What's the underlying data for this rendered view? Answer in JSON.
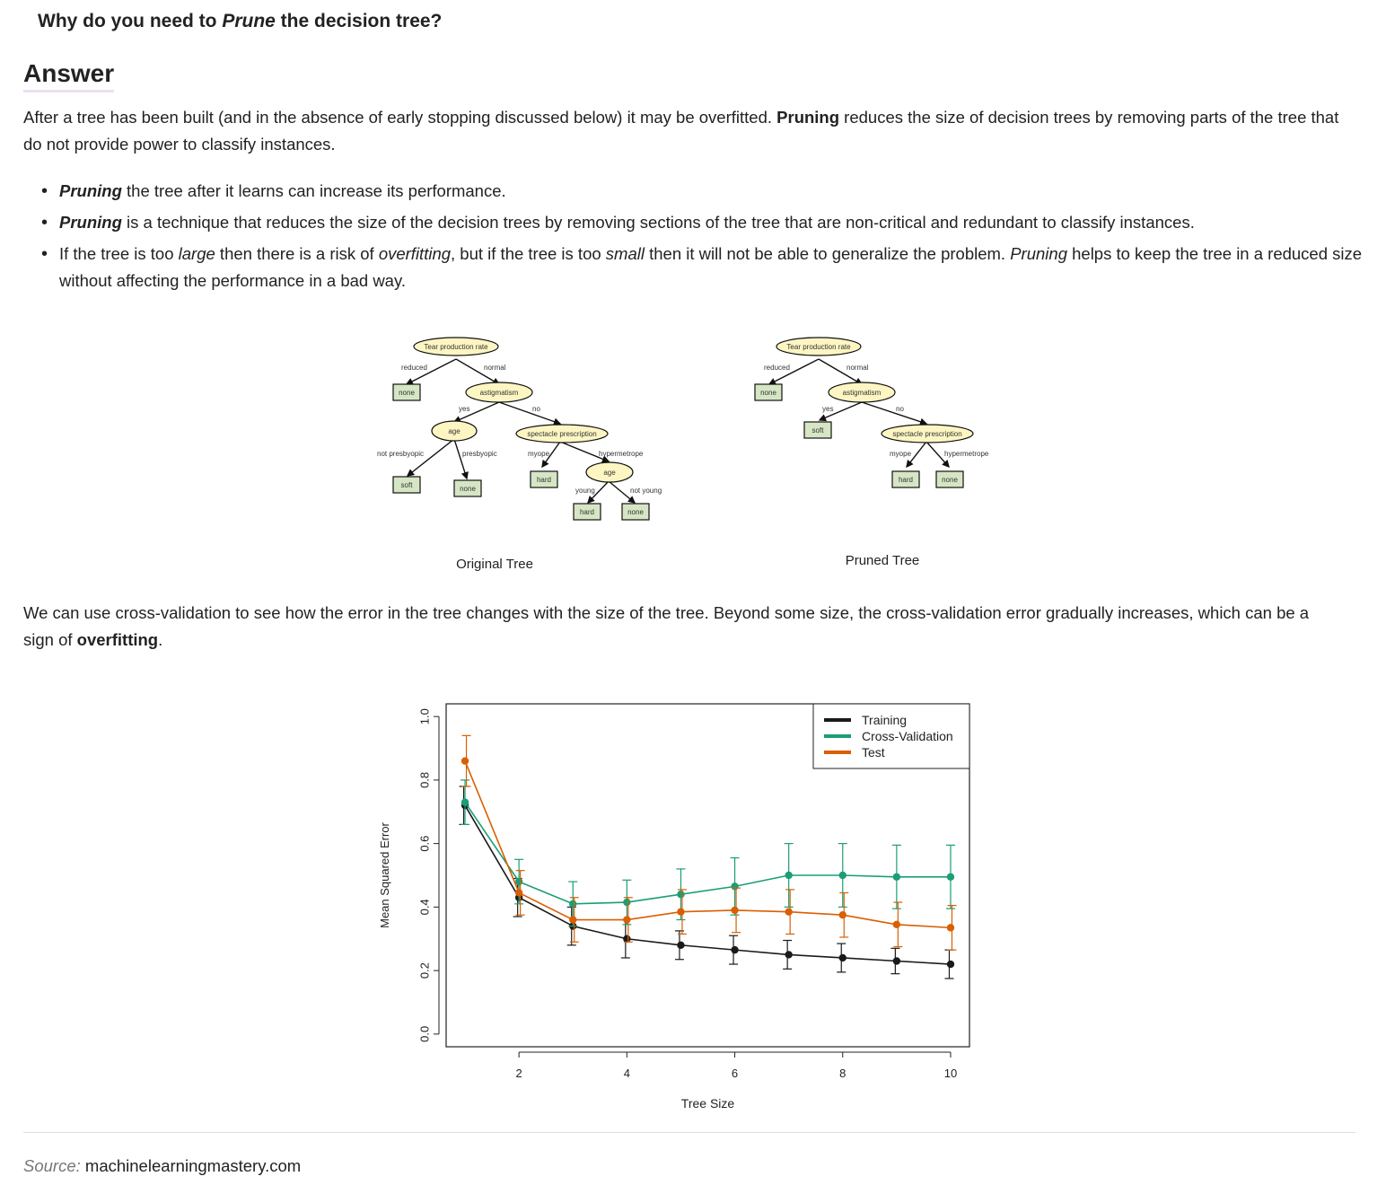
{
  "question": {
    "prefix": "Why do you need to ",
    "emph": "Prune",
    "suffix": " the decision tree?"
  },
  "answer_heading": "Answer",
  "para1": {
    "a": "After a tree has been built (and in the absence of early stopping discussed below) it may be overfitted. ",
    "b": "Pruning",
    "c": " reduces the size of decision trees by removing parts of the tree that do not provide power to classify instances."
  },
  "bullets": [
    {
      "a": "Pruning",
      "b": " the tree after it learns can increase its performance."
    },
    {
      "a": "Pruning",
      "b": " is a technique that reduces the size of the decision trees by removing sections of the tree that are non-critical and redundant to classify instances."
    },
    {
      "a": "If the tree is too ",
      "b": "large",
      "c": " then there is a risk of ",
      "d": "overfitting",
      "e": ", but if the tree is too ",
      "f": "small",
      "g": " then it will not be able to generalize the problem. ",
      "h": "Pruning",
      "i": " helps to keep the tree in a reduced size without affecting the performance in a bad way."
    }
  ],
  "trees": {
    "original_caption": "Original Tree",
    "pruned_caption": "Pruned Tree",
    "labels": {
      "tear": "Tear production rate",
      "reduced": "reduced",
      "normal": "normal",
      "none": "none",
      "astigmatism": "astigmatism",
      "yes": "yes",
      "no": "no",
      "age": "age",
      "spectacle": "spectacle prescription",
      "not_presbyopic": "not presbyopic",
      "presbyopic": "presbyopic",
      "myope": "myope",
      "hypermetrope": "hypermetrope",
      "soft": "soft",
      "hard": "hard",
      "young": "young",
      "not_young": "not young"
    }
  },
  "para2": {
    "a": "We can use cross-validation to see how the error in the tree changes with the size of the tree. Beyond some size, the cross-validation error gradually increases, which can be a sign of ",
    "b": "overfitting",
    "c": "."
  },
  "chart_data": {
    "type": "line",
    "xlabel": "Tree Size",
    "ylabel": "Mean Squared Error",
    "xlim": [
      0.65,
      10.35
    ],
    "ylim": [
      -0.04,
      1.04
    ],
    "xticks": [
      2,
      4,
      6,
      8,
      10
    ],
    "yticks": [
      0.0,
      0.2,
      0.4,
      0.6,
      0.8,
      1.0
    ],
    "legend_position": "top-right",
    "x": [
      1,
      2,
      3,
      4,
      5,
      6,
      7,
      8,
      9,
      10
    ],
    "series": [
      {
        "name": "Training",
        "color": "#1a1a1a",
        "values": [
          0.72,
          0.43,
          0.34,
          0.3,
          0.28,
          0.265,
          0.25,
          0.24,
          0.23,
          0.22
        ],
        "err": [
          0.06,
          0.06,
          0.06,
          0.06,
          0.045,
          0.045,
          0.045,
          0.045,
          0.04,
          0.045
        ]
      },
      {
        "name": "Cross-Validation",
        "color": "#1a9e77",
        "values": [
          0.73,
          0.48,
          0.41,
          0.415,
          0.44,
          0.465,
          0.5,
          0.5,
          0.495,
          0.495
        ],
        "err": [
          0.07,
          0.07,
          0.07,
          0.07,
          0.08,
          0.09,
          0.1,
          0.1,
          0.1,
          0.1
        ]
      },
      {
        "name": "Test",
        "color": "#d95f02",
        "values": [
          0.86,
          0.445,
          0.36,
          0.36,
          0.385,
          0.39,
          0.385,
          0.375,
          0.345,
          0.335
        ],
        "err": [
          0.08,
          0.07,
          0.07,
          0.07,
          0.07,
          0.07,
          0.07,
          0.07,
          0.07,
          0.07
        ]
      }
    ]
  },
  "source": {
    "label": "Source:",
    "text": " machinelearningmastery.com"
  }
}
